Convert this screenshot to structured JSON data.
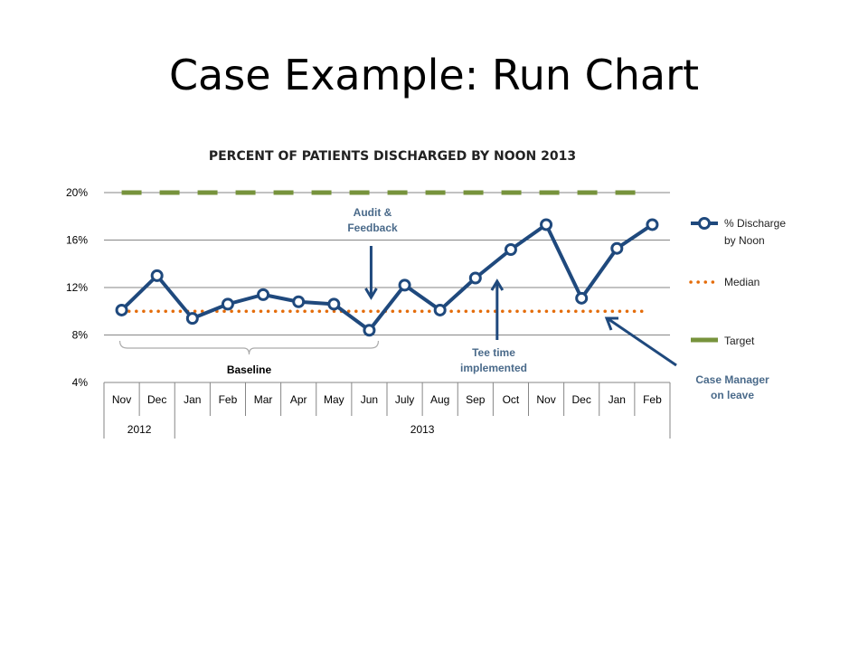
{
  "slide": {
    "title": "Case Example: Run Chart"
  },
  "colors": {
    "series": "#1f497d",
    "median": "#e46c0a",
    "target": "#77933c",
    "annotation": "#1f497d"
  },
  "chart_data": {
    "type": "line",
    "title": "PERCENT OF PATIENTS DISCHARGED BY NOON 2013",
    "categories": [
      "Nov",
      "Dec",
      "Jan",
      "Feb",
      "Mar",
      "Apr",
      "May",
      "Jun",
      "July",
      "Aug",
      "Sep",
      "Oct",
      "Nov",
      "Dec",
      "Jan",
      "Feb"
    ],
    "year_groups": [
      {
        "label": "2012",
        "span": 2
      },
      {
        "label": "2013",
        "span": 14
      }
    ],
    "y_ticks": [
      "20%",
      "16%",
      "12%",
      "8%",
      "4%"
    ],
    "ylim": [
      4,
      20
    ],
    "grid": true,
    "legend_position": "right",
    "series": [
      {
        "name": "% Discharge by Noon",
        "style": "line-markers",
        "values": [
          10.1,
          13.0,
          9.4,
          10.6,
          11.4,
          10.8,
          10.6,
          8.4,
          12.2,
          10.1,
          12.8,
          15.2,
          17.3,
          11.1,
          15.3,
          17.3
        ]
      },
      {
        "name": "Median",
        "style": "dotted",
        "values": [
          10,
          10,
          10,
          10,
          10,
          10,
          10,
          10,
          10,
          10,
          10,
          10,
          10,
          10,
          10,
          10
        ]
      },
      {
        "name": "Target",
        "style": "dashed",
        "values": [
          20,
          20,
          20,
          20,
          20,
          20,
          20,
          20,
          20,
          20,
          20,
          20,
          20,
          20,
          20,
          20
        ]
      }
    ],
    "annotations": [
      {
        "text_lines": [
          "Audit &",
          "Feedback"
        ],
        "category_index": 7
      },
      {
        "text_lines": [
          "Tee time",
          "implemented"
        ],
        "category_index": 10
      },
      {
        "text_lines": [
          "Case Manager",
          "on leave"
        ],
        "category_index": 13
      },
      {
        "text_lines": [
          "Baseline"
        ],
        "from_index": 0,
        "to_index": 7
      }
    ]
  }
}
